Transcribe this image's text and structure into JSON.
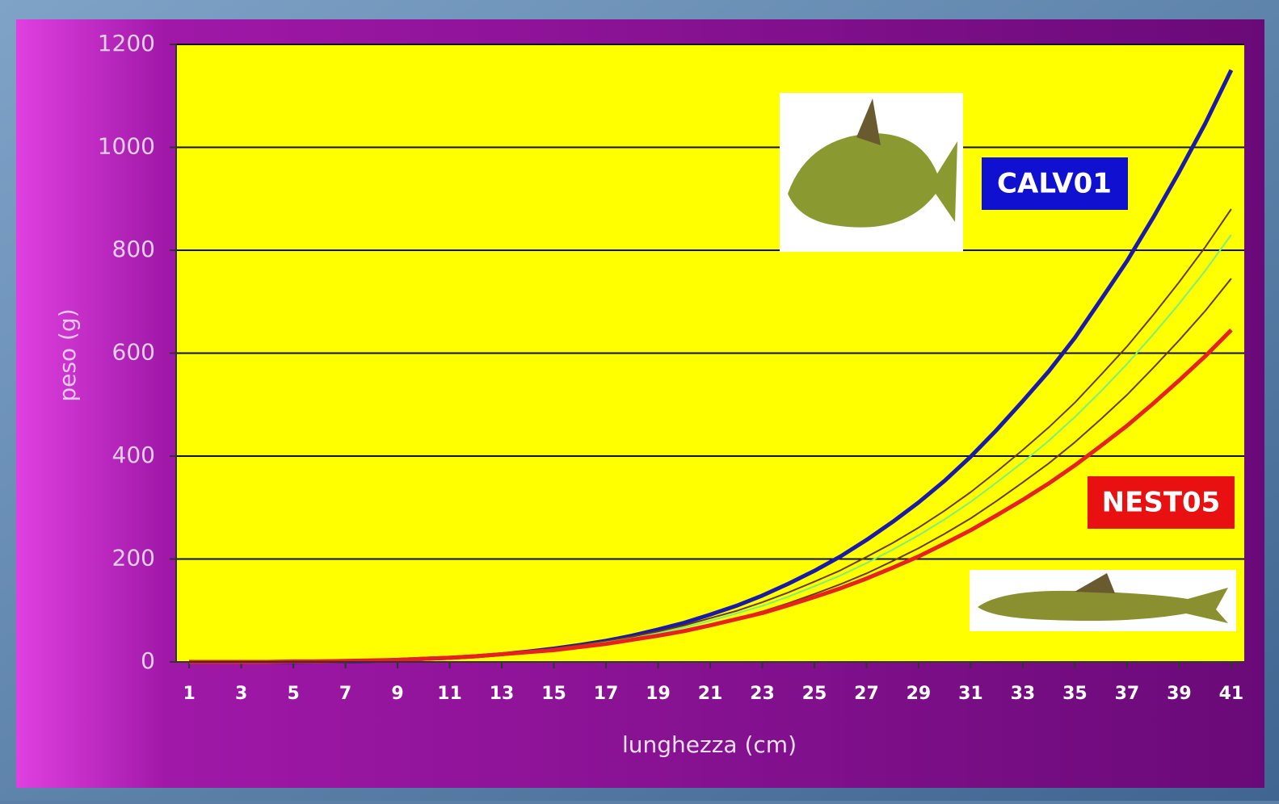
{
  "chart_data": {
    "type": "line",
    "x_label": "lunghezza (cm)",
    "y_label": "peso (g)",
    "x": [
      1,
      2,
      3,
      4,
      5,
      6,
      7,
      8,
      9,
      10,
      11,
      12,
      13,
      14,
      15,
      16,
      17,
      18,
      19,
      20,
      21,
      22,
      23,
      24,
      25,
      26,
      27,
      28,
      29,
      30,
      31,
      32,
      33,
      34,
      35,
      36,
      37,
      38,
      39,
      40,
      41
    ],
    "xlim": [
      0.5,
      41.5
    ],
    "xticks": [
      1,
      3,
      5,
      7,
      9,
      11,
      13,
      15,
      17,
      19,
      21,
      23,
      25,
      27,
      29,
      31,
      33,
      35,
      37,
      39,
      41
    ],
    "ylim": [
      0,
      1200
    ],
    "yticks": [
      0,
      200,
      400,
      600,
      800,
      1000,
      1200
    ],
    "grid": true,
    "series": [
      {
        "name": "CALV01",
        "color": "#1a1aa8",
        "values": [
          0,
          0,
          0,
          0,
          0,
          1,
          1,
          2,
          4,
          6,
          8,
          11,
          15,
          20,
          26,
          33,
          41,
          51,
          63,
          76,
          92,
          109,
          129,
          152,
          177,
          205,
          237,
          272,
          310,
          352,
          399,
          451,
          507,
          565,
          630,
          704,
          779,
          863,
          952,
          1046,
          1150
        ]
      },
      {
        "color": "#6b3a00",
        "values": [
          0,
          0,
          0,
          0,
          1,
          1,
          2,
          3,
          4,
          6,
          9,
          12,
          16,
          20,
          26,
          33,
          40,
          49,
          59,
          71,
          85,
          99,
          116,
          135,
          156,
          178,
          204,
          231,
          261,
          294,
          330,
          370,
          412,
          456,
          504,
          558,
          613,
          674,
          738,
          806,
          880
        ]
      },
      {
        "color": "#7cf07c",
        "values": [
          0,
          0,
          0,
          0,
          1,
          1,
          2,
          3,
          4,
          6,
          8,
          11,
          15,
          19,
          25,
          31,
          38,
          46,
          56,
          67,
          80,
          94,
          109,
          127,
          147,
          168,
          192,
          218,
          246,
          277,
          311,
          349,
          388,
          430,
          476,
          526,
          579,
          636,
          696,
          760,
          830
        ]
      },
      {
        "color": "#6b3a00",
        "values": [
          0,
          0,
          0,
          0,
          0,
          1,
          2,
          2,
          4,
          5,
          7,
          10,
          13,
          17,
          22,
          28,
          34,
          42,
          50,
          60,
          72,
          84,
          98,
          114,
          132,
          151,
          172,
          196,
          221,
          249,
          279,
          313,
          349,
          386,
          427,
          472,
          519,
          571,
          625,
          682,
          745
        ]
      },
      {
        "name": "NEST05",
        "color": "#e82020",
        "values": [
          0,
          0,
          0,
          0,
          1,
          1,
          2,
          3,
          4,
          6,
          8,
          11,
          15,
          19,
          23,
          29,
          35,
          43,
          51,
          60,
          71,
          83,
          95,
          110,
          126,
          143,
          162,
          183,
          205,
          230,
          256,
          285,
          315,
          347,
          382,
          420,
          459,
          502,
          547,
          594,
          645
        ]
      }
    ]
  }
}
